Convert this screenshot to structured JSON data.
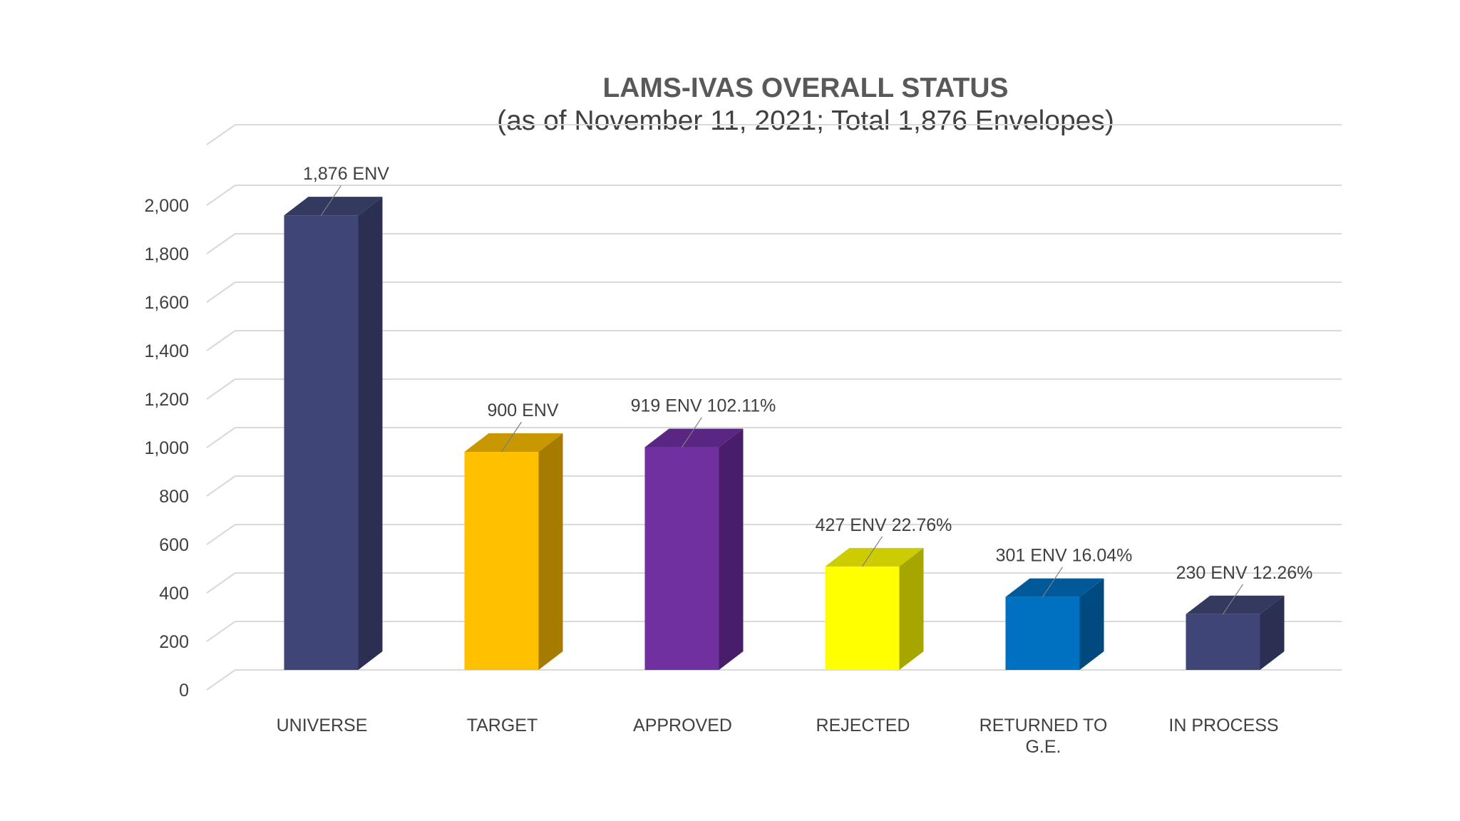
{
  "chart_data": {
    "type": "bar",
    "style": "3d-column",
    "title": "LAMS-IVAS OVERALL STATUS",
    "subtitle": "(as of November 11, 2021; Total 1,876 Envelopes)",
    "xlabel": "",
    "ylabel": "",
    "ylim": [
      0,
      2000
    ],
    "yticks": [
      0,
      200,
      400,
      600,
      800,
      1000,
      1200,
      1400,
      1600,
      1800,
      2000
    ],
    "ytick_labels": [
      "0",
      "200",
      "400",
      "600",
      "800",
      "1,000",
      "1,200",
      "1,400",
      "1,600",
      "1,800",
      "2,000"
    ],
    "grid": true,
    "legend": "none",
    "categories": [
      [
        "UNIVERSE"
      ],
      [
        "TARGET"
      ],
      [
        "APPROVED"
      ],
      [
        "REJECTED"
      ],
      [
        "RETURNED TO",
        "G.E."
      ],
      [
        "IN PROCESS"
      ]
    ],
    "values": [
      1876,
      900,
      919,
      427,
      301,
      230
    ],
    "data_labels": [
      "1,876 ENV",
      "900 ENV",
      "919 ENV 102.11%",
      "427 ENV 22.76%",
      "301 ENV 16.04%",
      "230 ENV 12.26%"
    ],
    "colors": [
      "#3f4577",
      "#ffc000",
      "#7030a0",
      "#ffff00",
      "#0070c0",
      "#3f4577"
    ],
    "side_colors": [
      "#2b2f52",
      "#a67c00",
      "#481d69",
      "#a6a600",
      "#004a80",
      "#2b2f52"
    ],
    "top_colors": [
      "#33395f",
      "#c99700",
      "#5a2683",
      "#cccc00",
      "#005a99",
      "#33395f"
    ],
    "gridline_color": "#d9d9d9",
    "label_color": "#404040",
    "title_color": "#595959"
  }
}
